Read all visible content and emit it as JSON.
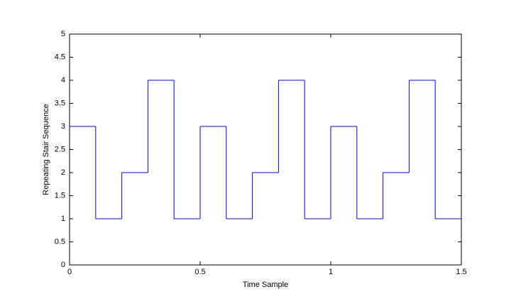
{
  "chart_data": {
    "type": "stairs",
    "x_label": "Time Sample",
    "y_label": "Repeating Stair Sequence",
    "x": [
      0,
      0.1,
      0.2,
      0.3,
      0.4,
      0.5,
      0.6,
      0.7,
      0.8,
      0.9,
      1.0,
      1.1,
      1.2,
      1.3,
      1.4,
      1.5
    ],
    "values": [
      3,
      1,
      2,
      4,
      1,
      3,
      1,
      2,
      4,
      1,
      3,
      1,
      2,
      4,
      1,
      1
    ],
    "color": "#0000ff",
    "xlim": [
      0,
      1.5
    ],
    "xticks": [
      0,
      0.5,
      1,
      1.5
    ],
    "ylim": [
      0,
      5
    ],
    "yticks": [
      0,
      0.5,
      1,
      1.5,
      2,
      2.5,
      3,
      3.5,
      4,
      4.5,
      5
    ],
    "grid": false
  }
}
